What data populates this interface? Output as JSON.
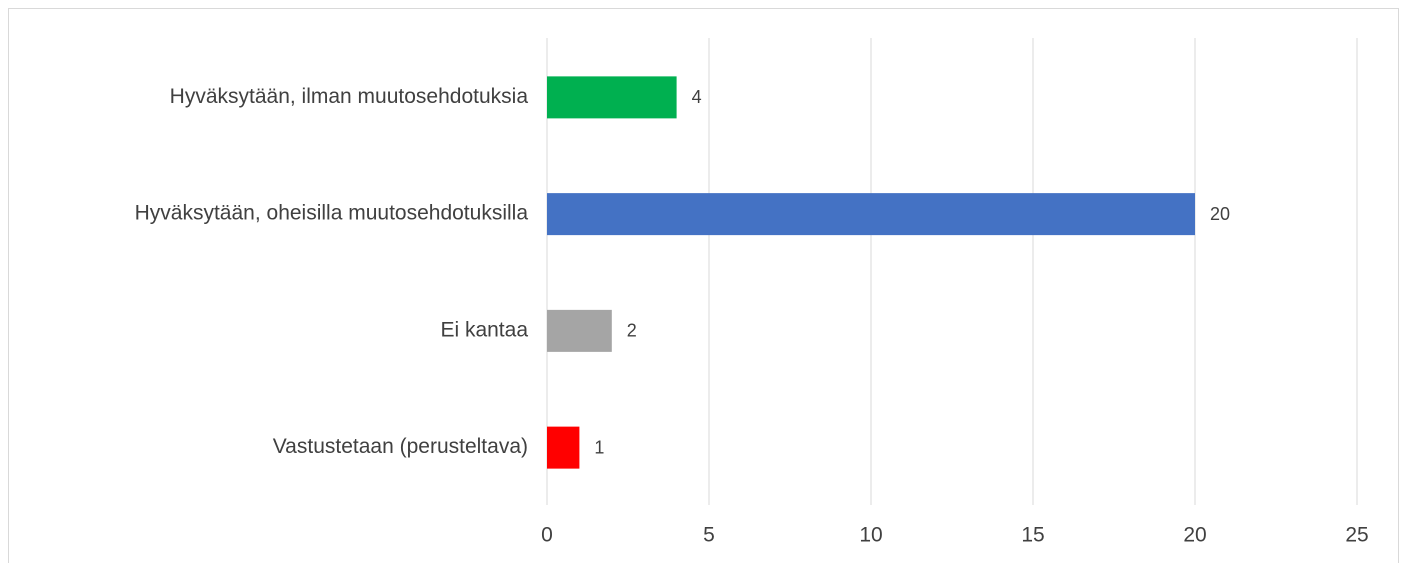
{
  "chart_data": {
    "type": "bar",
    "orientation": "horizontal",
    "categories": [
      "Hyväksytään, ilman muutosehdotuksia",
      "Hyväksytään, oheisilla muutosehdotuksilla",
      "Ei kantaa",
      "Vastustetaan (perusteltava)"
    ],
    "values": [
      4,
      20,
      2,
      1
    ],
    "colors": [
      "#00b050",
      "#4472c4",
      "#a5a5a5",
      "#ff0000"
    ],
    "xlim": [
      0,
      25
    ],
    "xticks": [
      0,
      5,
      10,
      15,
      20,
      25
    ],
    "grid": true
  }
}
